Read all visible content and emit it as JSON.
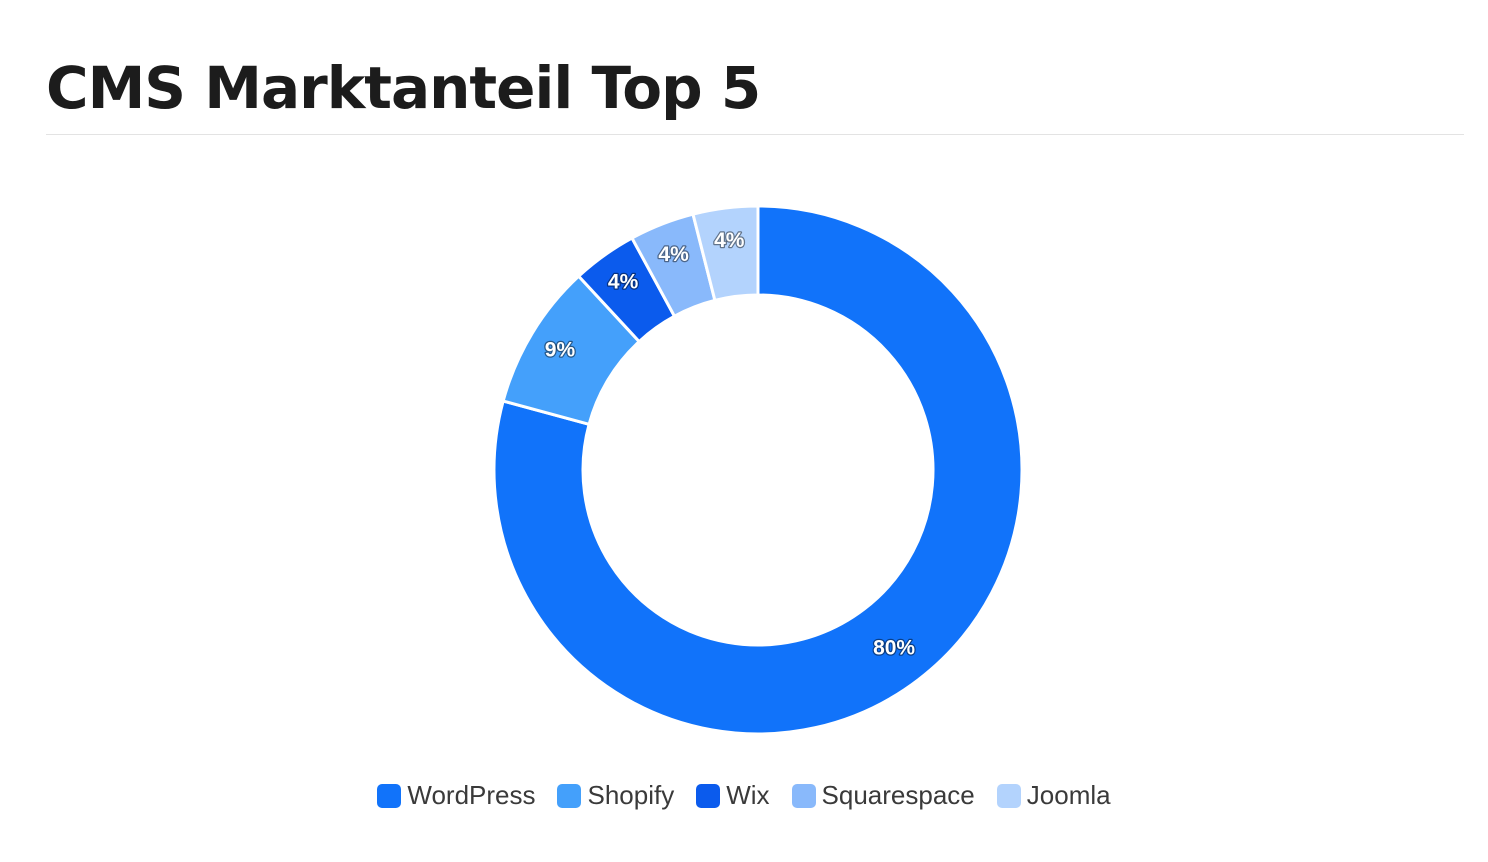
{
  "chart_data": {
    "type": "pie",
    "title": "CMS Marktanteil Top 5",
    "donut": true,
    "categories": [
      "WordPress",
      "Shopify",
      "Wix",
      "Squarespace",
      "Joomla"
    ],
    "values": [
      80,
      9,
      4,
      4,
      4
    ],
    "data_labels": [
      "80%",
      "9%",
      "4%",
      "4%",
      "4%"
    ],
    "colors": [
      "#1173fa",
      "#44a0fb",
      "#0b5bed",
      "#89b9fb",
      "#b3d3fd"
    ],
    "legend": "bottom",
    "start": "top, clockwise"
  }
}
